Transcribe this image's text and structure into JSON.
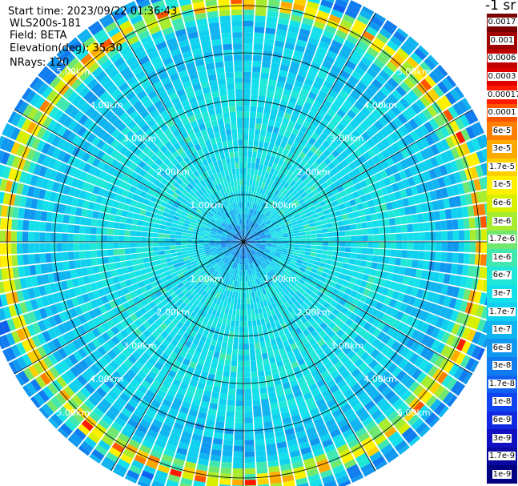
{
  "header": {
    "start_time": "Start time: 2023/09/22 01:36:43",
    "instrument": "WLS200s-181",
    "field": "Field: BETA",
    "elevation": "Elevation(deg): 35.30",
    "nrays": "NRays: 120"
  },
  "colorbar": {
    "unit_label": "-1 sr",
    "segments": [
      {
        "label": "0.0017",
        "color": "#7a0000"
      },
      {
        "label": "0.001",
        "color": "#a00000"
      },
      {
        "label": "0.0006",
        "color": "#c00000"
      },
      {
        "label": "0.0003",
        "color": "#e00000"
      },
      {
        "label": "0.00017",
        "color": "#ff1a00"
      },
      {
        "label": "0.0001",
        "color": "#ff5500"
      },
      {
        "label": "6e-5",
        "color": "#ff8000"
      },
      {
        "label": "3e-5",
        "color": "#ffaa00"
      },
      {
        "label": "1.7e-5",
        "color": "#ffd000"
      },
      {
        "label": "1e-5",
        "color": "#fff000"
      },
      {
        "label": "6e-6",
        "color": "#d8f000"
      },
      {
        "label": "3e-6",
        "color": "#a8ec30"
      },
      {
        "label": "1.7e-6",
        "color": "#70e870"
      },
      {
        "label": "1e-6",
        "color": "#40e8b0"
      },
      {
        "label": "6e-7",
        "color": "#20e8d8"
      },
      {
        "label": "3e-7",
        "color": "#14e0ec"
      },
      {
        "label": "1.7e-7",
        "color": "#10d0f0"
      },
      {
        "label": "1e-7",
        "color": "#10b4f0"
      },
      {
        "label": "6e-8",
        "color": "#1098f0"
      },
      {
        "label": "3e-8",
        "color": "#107cf0"
      },
      {
        "label": "1.7e-8",
        "color": "#1060f0"
      },
      {
        "label": "1e-8",
        "color": "#1044f0"
      },
      {
        "label": "6e-9",
        "color": "#1028e0"
      },
      {
        "label": "3e-9",
        "color": "#1010c0"
      },
      {
        "label": "1.7e-9",
        "color": "#0808a0"
      },
      {
        "label": "1e-9",
        "color": "#000080"
      }
    ]
  },
  "chart_data": {
    "type": "heatmap",
    "projection": "polar-ppi",
    "field": "BETA",
    "n_rays": 120,
    "range_rings_km": [
      1.0,
      2.0,
      3.0,
      4.0,
      5.0
    ],
    "ring_labels": [
      "1.00km",
      "2.00km",
      "3.00km",
      "4.00km",
      "5.00km"
    ],
    "max_range_km": 5.6,
    "spoke_angles_deg": [
      0,
      30,
      60,
      90,
      120,
      150,
      180,
      210,
      240,
      270,
      300,
      330
    ],
    "radial_profile": [
      {
        "range_km": 0.0,
        "value": "3e-8"
      },
      {
        "range_km": 1.0,
        "value": "3e-7"
      },
      {
        "range_km": 2.0,
        "value": "3e-7"
      },
      {
        "range_km": 3.0,
        "value": "3e-7"
      },
      {
        "range_km": 4.0,
        "value": "1.7e-7"
      },
      {
        "range_km": 4.6,
        "value": "1e-7"
      },
      {
        "range_km": 5.1,
        "value": "1.7e-5"
      },
      {
        "range_km": 5.4,
        "value": "6e-8"
      }
    ],
    "colors": {
      "background": "#ffffff",
      "grid": "#000000",
      "ray_separator": "#ffffff",
      "ring_label": "#ffffff"
    }
  }
}
